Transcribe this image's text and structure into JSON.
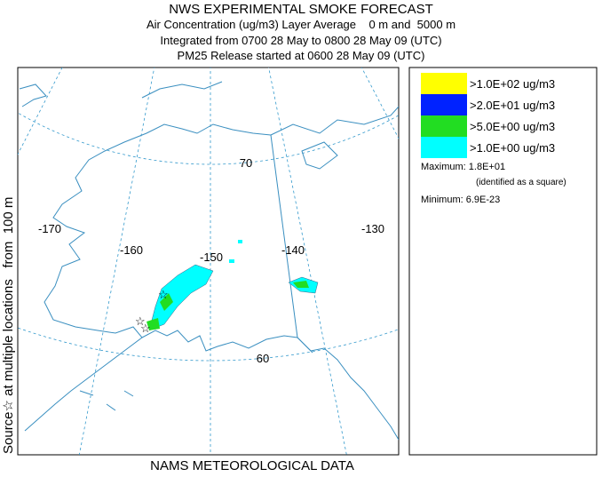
{
  "header": {
    "title": "NWS EXPERIMENTAL SMOKE FORECAST",
    "lines": [
      "Air Concentration (ug/m3) Layer Average    0 m and  5000 m",
      "Integrated from 0700 28 May to 0800 28 May 09 (UTC)",
      "PM25 Release started at 0600 28 May 09 (UTC)"
    ]
  },
  "side_label": "Source☆ at multiple locations   from  100 m",
  "footer": "NAMS METEOROLOGICAL DATA",
  "map": {
    "longitude_labels": [
      "-170",
      "-160",
      "-150",
      "-140",
      "-130"
    ],
    "latitude_labels": [
      "70",
      "60"
    ]
  },
  "legend": {
    "items": [
      {
        "label": ">1.0E+02 ug/m3",
        "color": "#ffff00"
      },
      {
        "label": ">2.0E+01 ug/m3",
        "color": "#0022ff"
      },
      {
        "label": ">5.0E+00 ug/m3",
        "color": "#22dd22"
      },
      {
        "label": ">1.0E+00 ug/m3",
        "color": "#00ffff"
      }
    ],
    "maximum": "Maximum: 1.8E+01",
    "maximum_note": "(identified as a square)",
    "minimum": "Minimum: 6.9E-23"
  }
}
